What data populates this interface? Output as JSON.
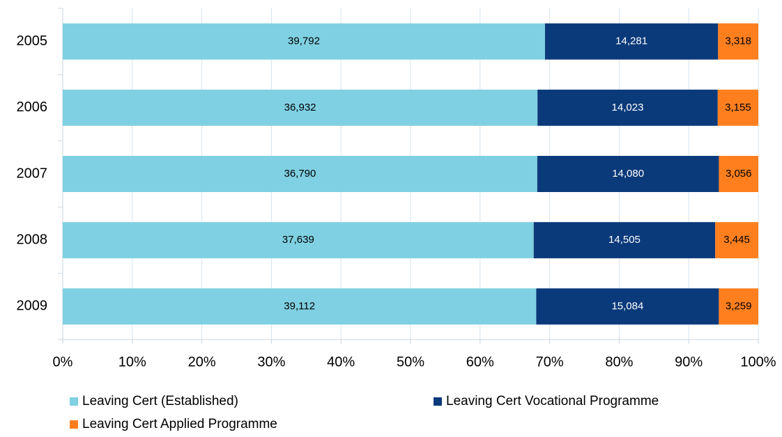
{
  "chart_data": {
    "type": "bar",
    "orientation": "horizontal",
    "stacked": "percent",
    "categories": [
      "2005",
      "2006",
      "2007",
      "2008",
      "2009"
    ],
    "series": [
      {
        "name": "Leaving Cert (Established)",
        "color": "#7fd0e2",
        "values": [
          39792,
          36932,
          36790,
          37639,
          39112
        ],
        "value_labels": [
          "39,792",
          "36,932",
          "36,790",
          "37,639",
          "39,112"
        ]
      },
      {
        "name": "Leaving Cert Vocational Programme",
        "color": "#0b3a7a",
        "values": [
          14281,
          14023,
          14080,
          14505,
          15084
        ],
        "value_labels": [
          "14,281",
          "14,023",
          "14,080",
          "14,505",
          "15,084"
        ]
      },
      {
        "name": "Leaving Cert Applied Programme",
        "color": "#ff7f1f",
        "values": [
          3318,
          3155,
          3056,
          3445,
          3259
        ],
        "value_labels": [
          "3,318",
          "3,155",
          "3,056",
          "3,445",
          "3,259"
        ]
      }
    ],
    "xlim": [
      0,
      100
    ],
    "xticks": [
      {
        "value": 0,
        "label": "0%"
      },
      {
        "value": 10,
        "label": "10%"
      },
      {
        "value": 20,
        "label": "20%"
      },
      {
        "value": 30,
        "label": "30%"
      },
      {
        "value": 40,
        "label": "40%"
      },
      {
        "value": 50,
        "label": "50%"
      },
      {
        "value": 60,
        "label": "60%"
      },
      {
        "value": 70,
        "label": "70%"
      },
      {
        "value": 80,
        "label": "80%"
      },
      {
        "value": 90,
        "label": "90%"
      },
      {
        "value": 100,
        "label": "100%"
      }
    ],
    "grid": true,
    "legend": "bottom"
  }
}
